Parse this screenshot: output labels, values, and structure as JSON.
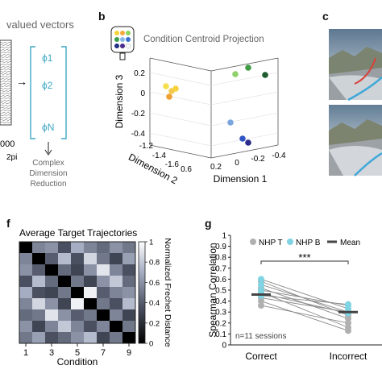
{
  "panel_a": {
    "title_fragment": "valued vectors",
    "arrow_label": "→",
    "vector_items": [
      "ϕ1",
      "ϕ2",
      "ϕN"
    ],
    "left_labels": [
      "000",
      "2pi"
    ],
    "caption": [
      "Complex",
      "Dimension",
      "Reduction"
    ]
  },
  "panel_b": {
    "letter": "b",
    "title": "Condition Centroid Projection",
    "axis_labels": {
      "dim1": "Dimension 1",
      "dim2": "Dimension 2",
      "dim3": "Dimension 3"
    },
    "ticks_dim3": [
      "0.2",
      "0",
      "-0.2",
      "-0.4"
    ],
    "ticks_dim2": [
      "-1.2",
      "-1.4",
      "-1.6",
      "0.6"
    ],
    "ticks_dim1": [
      "0.2",
      "0",
      "-0.2",
      "-0.4"
    ],
    "legend_colors": [
      "#f3d23a",
      "#f4a93a",
      "#8bd35c",
      "#3c9d4a",
      "#8ab6e8",
      "#3a6fd1",
      "#1f2f86",
      "#4b2a8a",
      "#ffffff"
    ],
    "points": [
      {
        "color": "#f4e04d"
      },
      {
        "color": "#f2c94c"
      },
      {
        "color": "#f7d23e"
      },
      {
        "color": "#f0a030"
      },
      {
        "color": "#8fd16a"
      },
      {
        "color": "#3f9c45"
      },
      {
        "color": "#1f5c2e"
      },
      {
        "color": "#7aa6e0"
      },
      {
        "color": "#2f55c5"
      },
      {
        "color": "#2a2a8a"
      }
    ]
  },
  "panel_c": {
    "letter": "c"
  },
  "panel_f": {
    "letter": "f",
    "title": "Average Target Trajectories",
    "xlabel": "Condition",
    "x_ticks": [
      "1",
      "3",
      "5",
      "7",
      "9"
    ],
    "colorbar_label": "Normalized Frechet Distance",
    "colorbar_ticks": [
      "1",
      "0.8",
      "0.6",
      "0.4",
      "0.2",
      "0"
    ]
  },
  "panel_g": {
    "letter": "g",
    "ylabel": "Spearman Correlation",
    "y_ticks": [
      "1",
      "0.9",
      "0.8",
      "0.7",
      "0.6",
      "0.5",
      "0.4",
      "0.3",
      "0.2",
      "0.1",
      "0"
    ],
    "legend": [
      "NHP T",
      "NHP B",
      "Mean"
    ],
    "significance": "***",
    "note": "n=11 sessions",
    "categories": [
      "Correct",
      "Incorrect"
    ]
  },
  "chart_data": [
    {
      "type": "heatmap",
      "title": "Average Target Trajectories",
      "xlabel": "Condition",
      "x_ticks": [
        "1",
        "3",
        "5",
        "7",
        "9"
      ],
      "colorbar_label": "Normalized Frechet Distance",
      "colorbar_range": [
        0,
        1
      ],
      "matrix": [
        [
          0.0,
          0.55,
          0.6,
          0.35,
          0.7,
          0.55,
          0.45,
          0.6,
          0.5
        ],
        [
          0.55,
          0.0,
          0.4,
          0.75,
          0.35,
          0.85,
          0.5,
          0.3,
          0.65
        ],
        [
          0.6,
          0.4,
          0.0,
          0.45,
          0.3,
          0.6,
          0.9,
          0.55,
          0.35
        ],
        [
          0.35,
          0.75,
          0.45,
          0.0,
          0.5,
          0.3,
          0.6,
          0.8,
          0.45
        ],
        [
          0.7,
          0.35,
          0.3,
          0.5,
          0.0,
          0.95,
          0.4,
          0.55,
          0.6
        ],
        [
          0.55,
          0.85,
          0.6,
          0.3,
          0.95,
          0.0,
          0.5,
          0.35,
          0.75
        ],
        [
          0.45,
          0.5,
          0.9,
          0.6,
          0.4,
          0.5,
          0.0,
          0.55,
          0.3
        ],
        [
          0.6,
          0.3,
          0.55,
          0.8,
          0.55,
          0.35,
          0.55,
          0.0,
          0.5
        ],
        [
          0.5,
          0.65,
          0.35,
          0.45,
          0.6,
          0.75,
          0.3,
          0.5,
          0.0
        ]
      ]
    },
    {
      "type": "scatter",
      "ylabel": "Spearman Correlation",
      "ylim": [
        0,
        1
      ],
      "categories": [
        "Correct",
        "Incorrect"
      ],
      "series": [
        {
          "name": "NHP T",
          "color": "#b0b0b0",
          "pairs": [
            [
              0.58,
              0.27
            ],
            [
              0.52,
              0.24
            ],
            [
              0.48,
              0.16
            ],
            [
              0.43,
              0.3
            ],
            [
              0.4,
              0.13
            ],
            [
              0.36,
              0.2
            ]
          ]
        },
        {
          "name": "NHP B",
          "color": "#7fd3e3",
          "pairs": [
            [
              0.6,
              0.33
            ],
            [
              0.55,
              0.3
            ],
            [
              0.5,
              0.36
            ],
            [
              0.45,
              0.37
            ],
            [
              0.47,
              0.29
            ]
          ]
        },
        {
          "name": "Mean",
          "color": "#444444",
          "values": [
            0.46,
            0.3
          ]
        }
      ],
      "significance": "***",
      "annotation": "n=11 sessions"
    }
  ]
}
